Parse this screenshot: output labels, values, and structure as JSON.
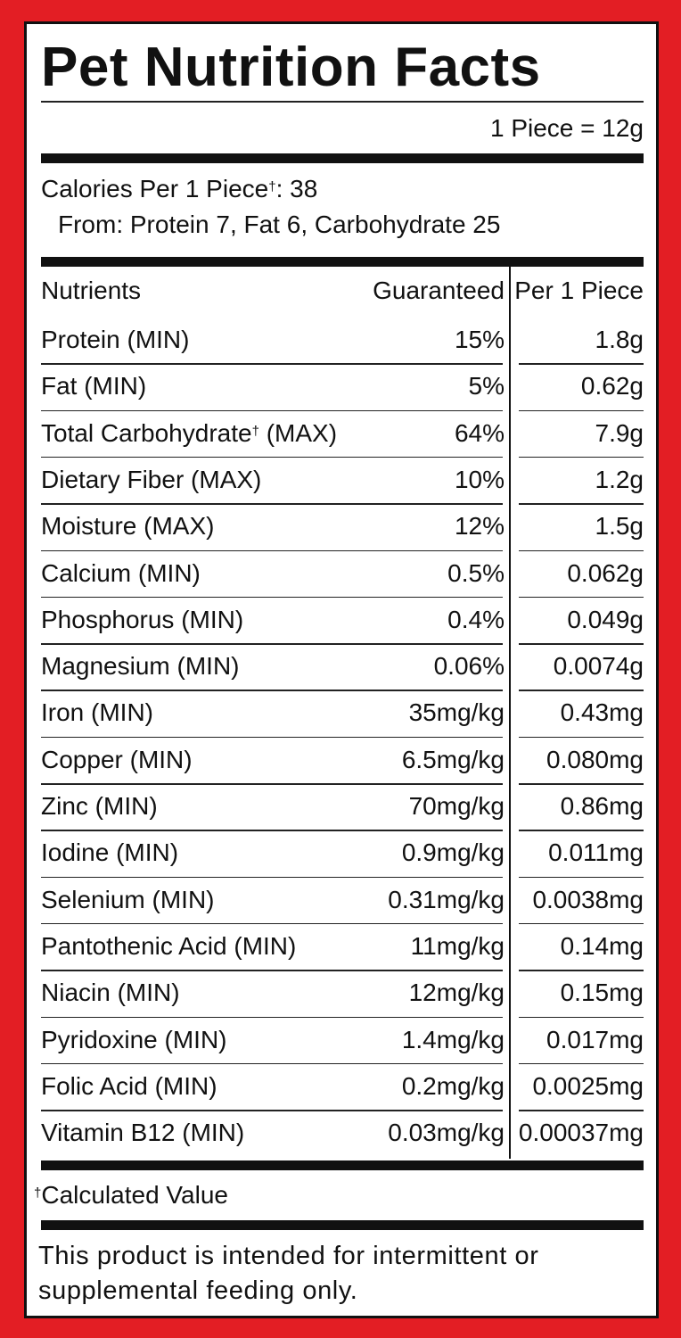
{
  "title": "Pet Nutrition Facts",
  "serving": "1 Piece = 12g",
  "calories": {
    "text": "Calories Per 1 Piece",
    "sup": "†",
    "rest": ": 38"
  },
  "from": "From: Protein 7, Fat 6, Carbohydrate 25",
  "header": {
    "nutrients": "Nutrients",
    "guaranteed": "Guaranteed",
    "per_piece": "Per 1 Piece"
  },
  "rows": [
    {
      "name": "Protein (MIN)",
      "guaranteed": "15%",
      "per_piece": "1.8g"
    },
    {
      "name": "Fat (MIN)",
      "guaranteed": "5%",
      "per_piece": "0.62g"
    },
    {
      "name": "Total Carbohydrate",
      "sup": "†",
      "rest": " (MAX)",
      "guaranteed": "64%",
      "per_piece": "7.9g"
    },
    {
      "name": "Dietary Fiber (MAX)",
      "guaranteed": "10%",
      "per_piece": "1.2g"
    },
    {
      "name": "Moisture (MAX)",
      "guaranteed": "12%",
      "per_piece": "1.5g"
    },
    {
      "name": "Calcium (MIN)",
      "guaranteed": "0.5%",
      "per_piece": "0.062g"
    },
    {
      "name": "Phosphorus (MIN)",
      "guaranteed": "0.4%",
      "per_piece": "0.049g"
    },
    {
      "name": "Magnesium (MIN)",
      "guaranteed": "0.06%",
      "per_piece": "0.0074g"
    },
    {
      "name": "Iron (MIN)",
      "guaranteed": "35mg/kg",
      "per_piece": "0.43mg"
    },
    {
      "name": "Copper (MIN)",
      "guaranteed": "6.5mg/kg",
      "per_piece": "0.080mg"
    },
    {
      "name": "Zinc (MIN)",
      "guaranteed": "70mg/kg",
      "per_piece": "0.86mg"
    },
    {
      "name": "Iodine (MIN)",
      "guaranteed": "0.9mg/kg",
      "per_piece": "0.011mg"
    },
    {
      "name": "Selenium (MIN)",
      "guaranteed": "0.31mg/kg",
      "per_piece": "0.0038mg"
    },
    {
      "name": "Pantothenic Acid (MIN)",
      "guaranteed": "11mg/kg",
      "per_piece": "0.14mg"
    },
    {
      "name": "Niacin (MIN)",
      "guaranteed": "12mg/kg",
      "per_piece": "0.15mg"
    },
    {
      "name": "Pyridoxine (MIN)",
      "guaranteed": "1.4mg/kg",
      "per_piece": "0.017mg"
    },
    {
      "name": "Folic Acid (MIN)",
      "guaranteed": "0.2mg/kg",
      "per_piece": "0.0025mg"
    },
    {
      "name": "Vitamin B12 (MIN)",
      "guaranteed": "0.03mg/kg",
      "per_piece": "0.00037mg"
    }
  ],
  "footnote": {
    "sup": "†",
    "text": "Calculated Value"
  },
  "disclaimer": "This product is intended for intermittent or supplemental feeding only."
}
